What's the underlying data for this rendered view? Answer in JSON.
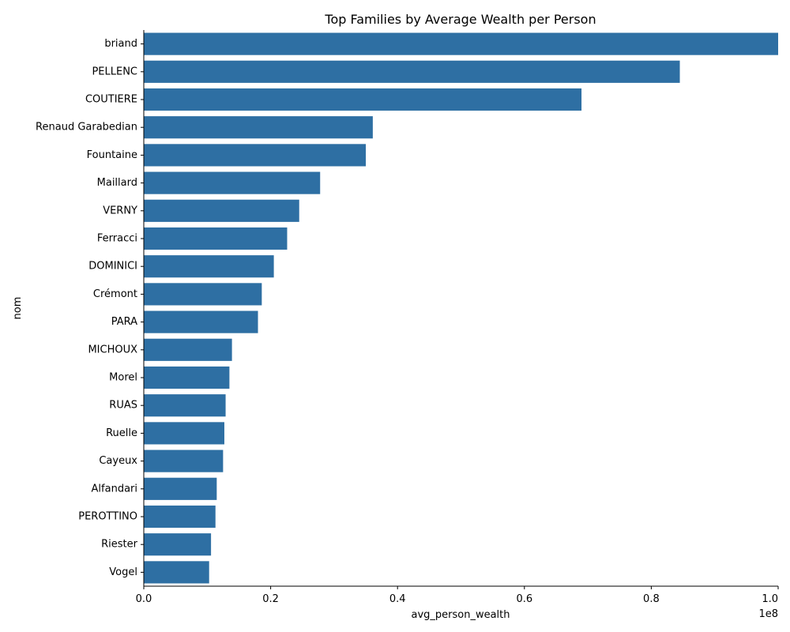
{
  "chart_data": {
    "type": "bar",
    "orientation": "horizontal",
    "title": "Top Families by Average Wealth per Person",
    "xlabel": "avg_person_wealth",
    "ylabel": "nom",
    "x_scale_label": "1e8",
    "xlim": [
      0,
      100000000
    ],
    "x_ticks": [
      0,
      20000000,
      40000000,
      60000000,
      80000000,
      100000000
    ],
    "x_tick_labels": [
      "0.0",
      "0.2",
      "0.4",
      "0.6",
      "0.8",
      "1.0"
    ],
    "grid": false,
    "bar_color": "#2e6fa3",
    "categories": [
      "briand",
      "PELLENC",
      "COUTIERE",
      "Renaud Garabedian",
      "Fountaine",
      "Maillard",
      "VERNY",
      "Ferracci",
      "DOMINICI",
      "Crémont",
      "PARA",
      "MICHOUX",
      "Morel",
      "RUAS",
      "Ruelle",
      "Cayeux",
      "Alfandari",
      "PEROTTINO",
      "Riester",
      "Vogel"
    ],
    "values": [
      100000000,
      84500000,
      69000000,
      36100000,
      35000000,
      27800000,
      24500000,
      22600000,
      20500000,
      18600000,
      18000000,
      13900000,
      13500000,
      12900000,
      12700000,
      12500000,
      11500000,
      11300000,
      10600000,
      10300000
    ]
  }
}
